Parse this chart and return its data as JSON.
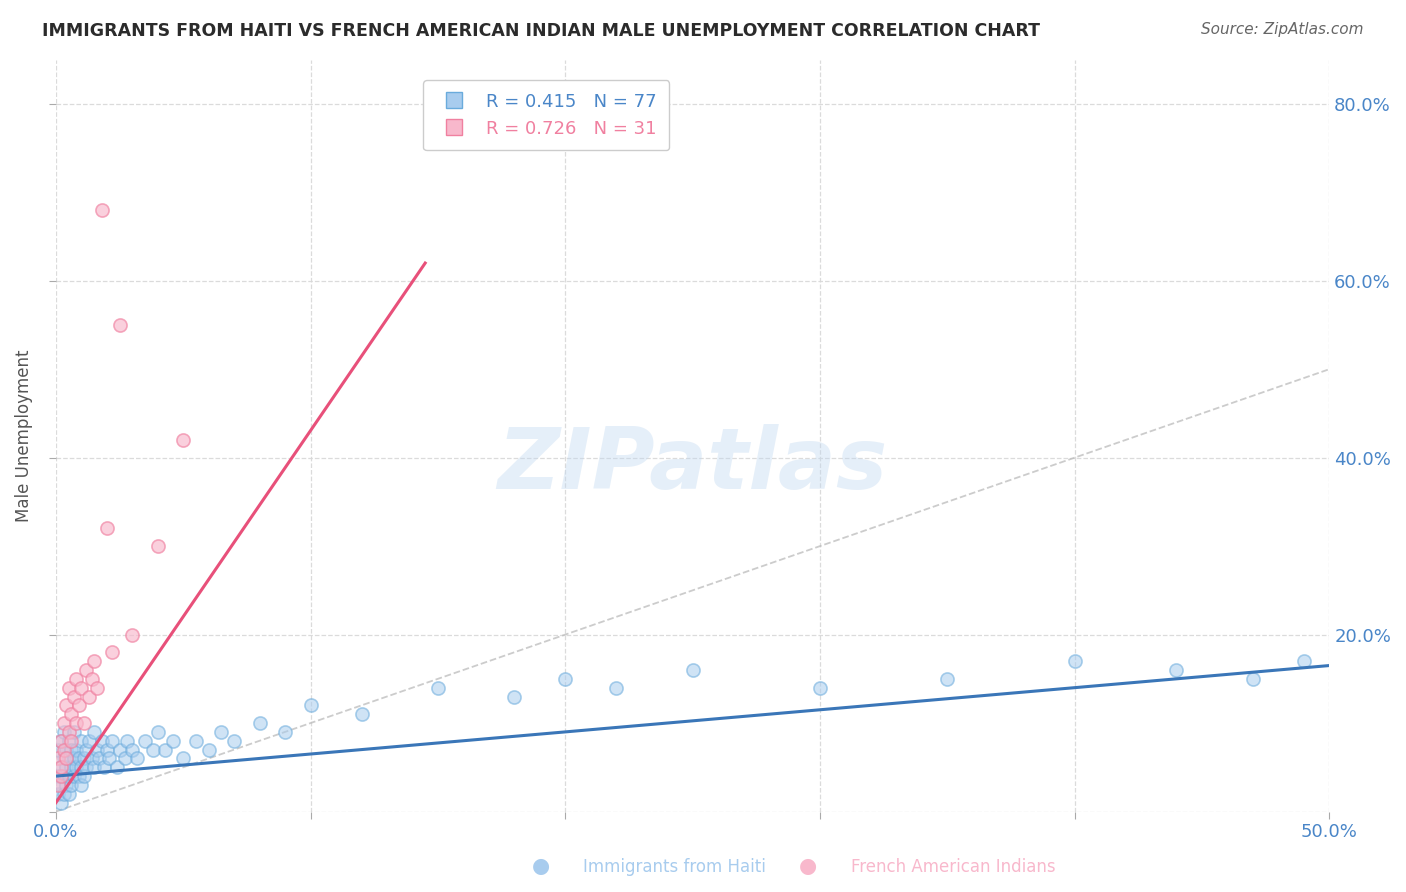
{
  "title": "IMMIGRANTS FROM HAITI VS FRENCH AMERICAN INDIAN MALE UNEMPLOYMENT CORRELATION CHART",
  "source": "Source: ZipAtlas.com",
  "ylabel_left": "Male Unemployment",
  "xlim": [
    0.0,
    0.5
  ],
  "ylim": [
    0.0,
    0.85
  ],
  "R1": 0.415,
  "N1": 77,
  "R2": 0.726,
  "N2": 31,
  "legend_label1": "Immigrants from Haiti",
  "legend_label2": "French American Indians",
  "watermark": "ZIPatlas",
  "background_color": "#ffffff",
  "grid_color": "#d8d8d8",
  "title_color": "#2b2b2b",
  "axis_color": "#4a86c8",
  "series1_fill_color": "#a8ccee",
  "series1_edge_color": "#6aabdc",
  "series2_fill_color": "#f8b8cc",
  "series2_edge_color": "#f080a0",
  "line1_color": "#3a76b8",
  "line2_color": "#e8507a",
  "diag_color": "#bbbbbb",
  "s1_x": [
    0.001,
    0.001,
    0.001,
    0.002,
    0.002,
    0.002,
    0.002,
    0.003,
    0.003,
    0.003,
    0.003,
    0.004,
    0.004,
    0.004,
    0.005,
    0.005,
    0.005,
    0.005,
    0.006,
    0.006,
    0.006,
    0.007,
    0.007,
    0.007,
    0.008,
    0.008,
    0.009,
    0.009,
    0.01,
    0.01,
    0.01,
    0.011,
    0.011,
    0.012,
    0.012,
    0.013,
    0.014,
    0.015,
    0.015,
    0.016,
    0.017,
    0.018,
    0.019,
    0.02,
    0.021,
    0.022,
    0.024,
    0.025,
    0.027,
    0.028,
    0.03,
    0.032,
    0.035,
    0.038,
    0.04,
    0.043,
    0.046,
    0.05,
    0.055,
    0.06,
    0.065,
    0.07,
    0.08,
    0.09,
    0.1,
    0.12,
    0.15,
    0.18,
    0.2,
    0.22,
    0.25,
    0.3,
    0.35,
    0.4,
    0.44,
    0.47,
    0.49
  ],
  "s1_y": [
    0.04,
    0.07,
    0.02,
    0.05,
    0.03,
    0.08,
    0.01,
    0.06,
    0.04,
    0.09,
    0.02,
    0.05,
    0.07,
    0.03,
    0.06,
    0.04,
    0.08,
    0.02,
    0.05,
    0.07,
    0.03,
    0.06,
    0.04,
    0.09,
    0.05,
    0.07,
    0.04,
    0.06,
    0.08,
    0.03,
    0.05,
    0.06,
    0.04,
    0.07,
    0.05,
    0.08,
    0.06,
    0.09,
    0.05,
    0.07,
    0.06,
    0.08,
    0.05,
    0.07,
    0.06,
    0.08,
    0.05,
    0.07,
    0.06,
    0.08,
    0.07,
    0.06,
    0.08,
    0.07,
    0.09,
    0.07,
    0.08,
    0.06,
    0.08,
    0.07,
    0.09,
    0.08,
    0.1,
    0.09,
    0.12,
    0.11,
    0.14,
    0.13,
    0.15,
    0.14,
    0.16,
    0.14,
    0.15,
    0.17,
    0.16,
    0.15,
    0.17
  ],
  "s2_x": [
    0.001,
    0.001,
    0.002,
    0.002,
    0.002,
    0.003,
    0.003,
    0.004,
    0.004,
    0.005,
    0.005,
    0.006,
    0.006,
    0.007,
    0.008,
    0.008,
    0.009,
    0.01,
    0.011,
    0.012,
    0.013,
    0.014,
    0.015,
    0.016,
    0.018,
    0.02,
    0.022,
    0.025,
    0.03,
    0.04,
    0.05
  ],
  "s2_y": [
    0.03,
    0.06,
    0.04,
    0.08,
    0.05,
    0.07,
    0.1,
    0.06,
    0.12,
    0.09,
    0.14,
    0.11,
    0.08,
    0.13,
    0.1,
    0.15,
    0.12,
    0.14,
    0.1,
    0.16,
    0.13,
    0.15,
    0.17,
    0.14,
    0.68,
    0.32,
    0.18,
    0.55,
    0.2,
    0.3,
    0.42
  ],
  "line1_x0": 0.0,
  "line1_y0": 0.04,
  "line1_x1": 0.5,
  "line1_y1": 0.165,
  "line2_x0": 0.0,
  "line2_y0": 0.01,
  "line2_x1": 0.145,
  "line2_y1": 0.62
}
